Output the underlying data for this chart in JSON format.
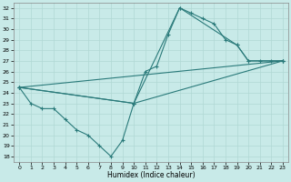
{
  "bg_color": "#c8eae8",
  "line_color": "#2a7a7a",
  "xlabel": "Humidex (Indice chaleur)",
  "xlim": [
    -0.5,
    23.5
  ],
  "ylim": [
    17.5,
    32.5
  ],
  "xticks": [
    0,
    1,
    2,
    3,
    4,
    5,
    6,
    7,
    8,
    9,
    10,
    11,
    12,
    13,
    14,
    15,
    16,
    17,
    18,
    19,
    20,
    21,
    22,
    23
  ],
  "yticks": [
    18,
    19,
    20,
    21,
    22,
    23,
    24,
    25,
    26,
    27,
    28,
    29,
    30,
    31,
    32
  ],
  "line1_x": [
    0,
    1,
    2,
    3,
    4,
    5,
    6,
    7,
    8,
    9,
    10,
    11,
    12,
    13,
    14,
    15,
    16,
    17,
    18,
    19,
    20,
    21,
    22,
    23
  ],
  "line1_y": [
    24.5,
    23.0,
    22.5,
    22.5,
    21.5,
    20.5,
    20.0,
    19.0,
    18.0,
    19.5,
    23.0,
    26.0,
    26.5,
    29.5,
    32.0,
    31.5,
    31.0,
    30.5,
    29.0,
    28.5,
    27.0,
    27.0,
    27.0,
    27.0
  ],
  "line2_x": [
    0,
    10,
    14,
    19,
    20,
    23
  ],
  "line2_y": [
    24.5,
    23.0,
    32.0,
    28.5,
    27.0,
    27.0
  ],
  "line3_x": [
    0,
    23
  ],
  "line3_y": [
    24.5,
    27.0
  ],
  "line4_x": [
    0,
    10,
    23
  ],
  "line4_y": [
    24.5,
    23.0,
    27.0
  ],
  "grid_color": "#b0d8d4",
  "spine_color": "#888888"
}
